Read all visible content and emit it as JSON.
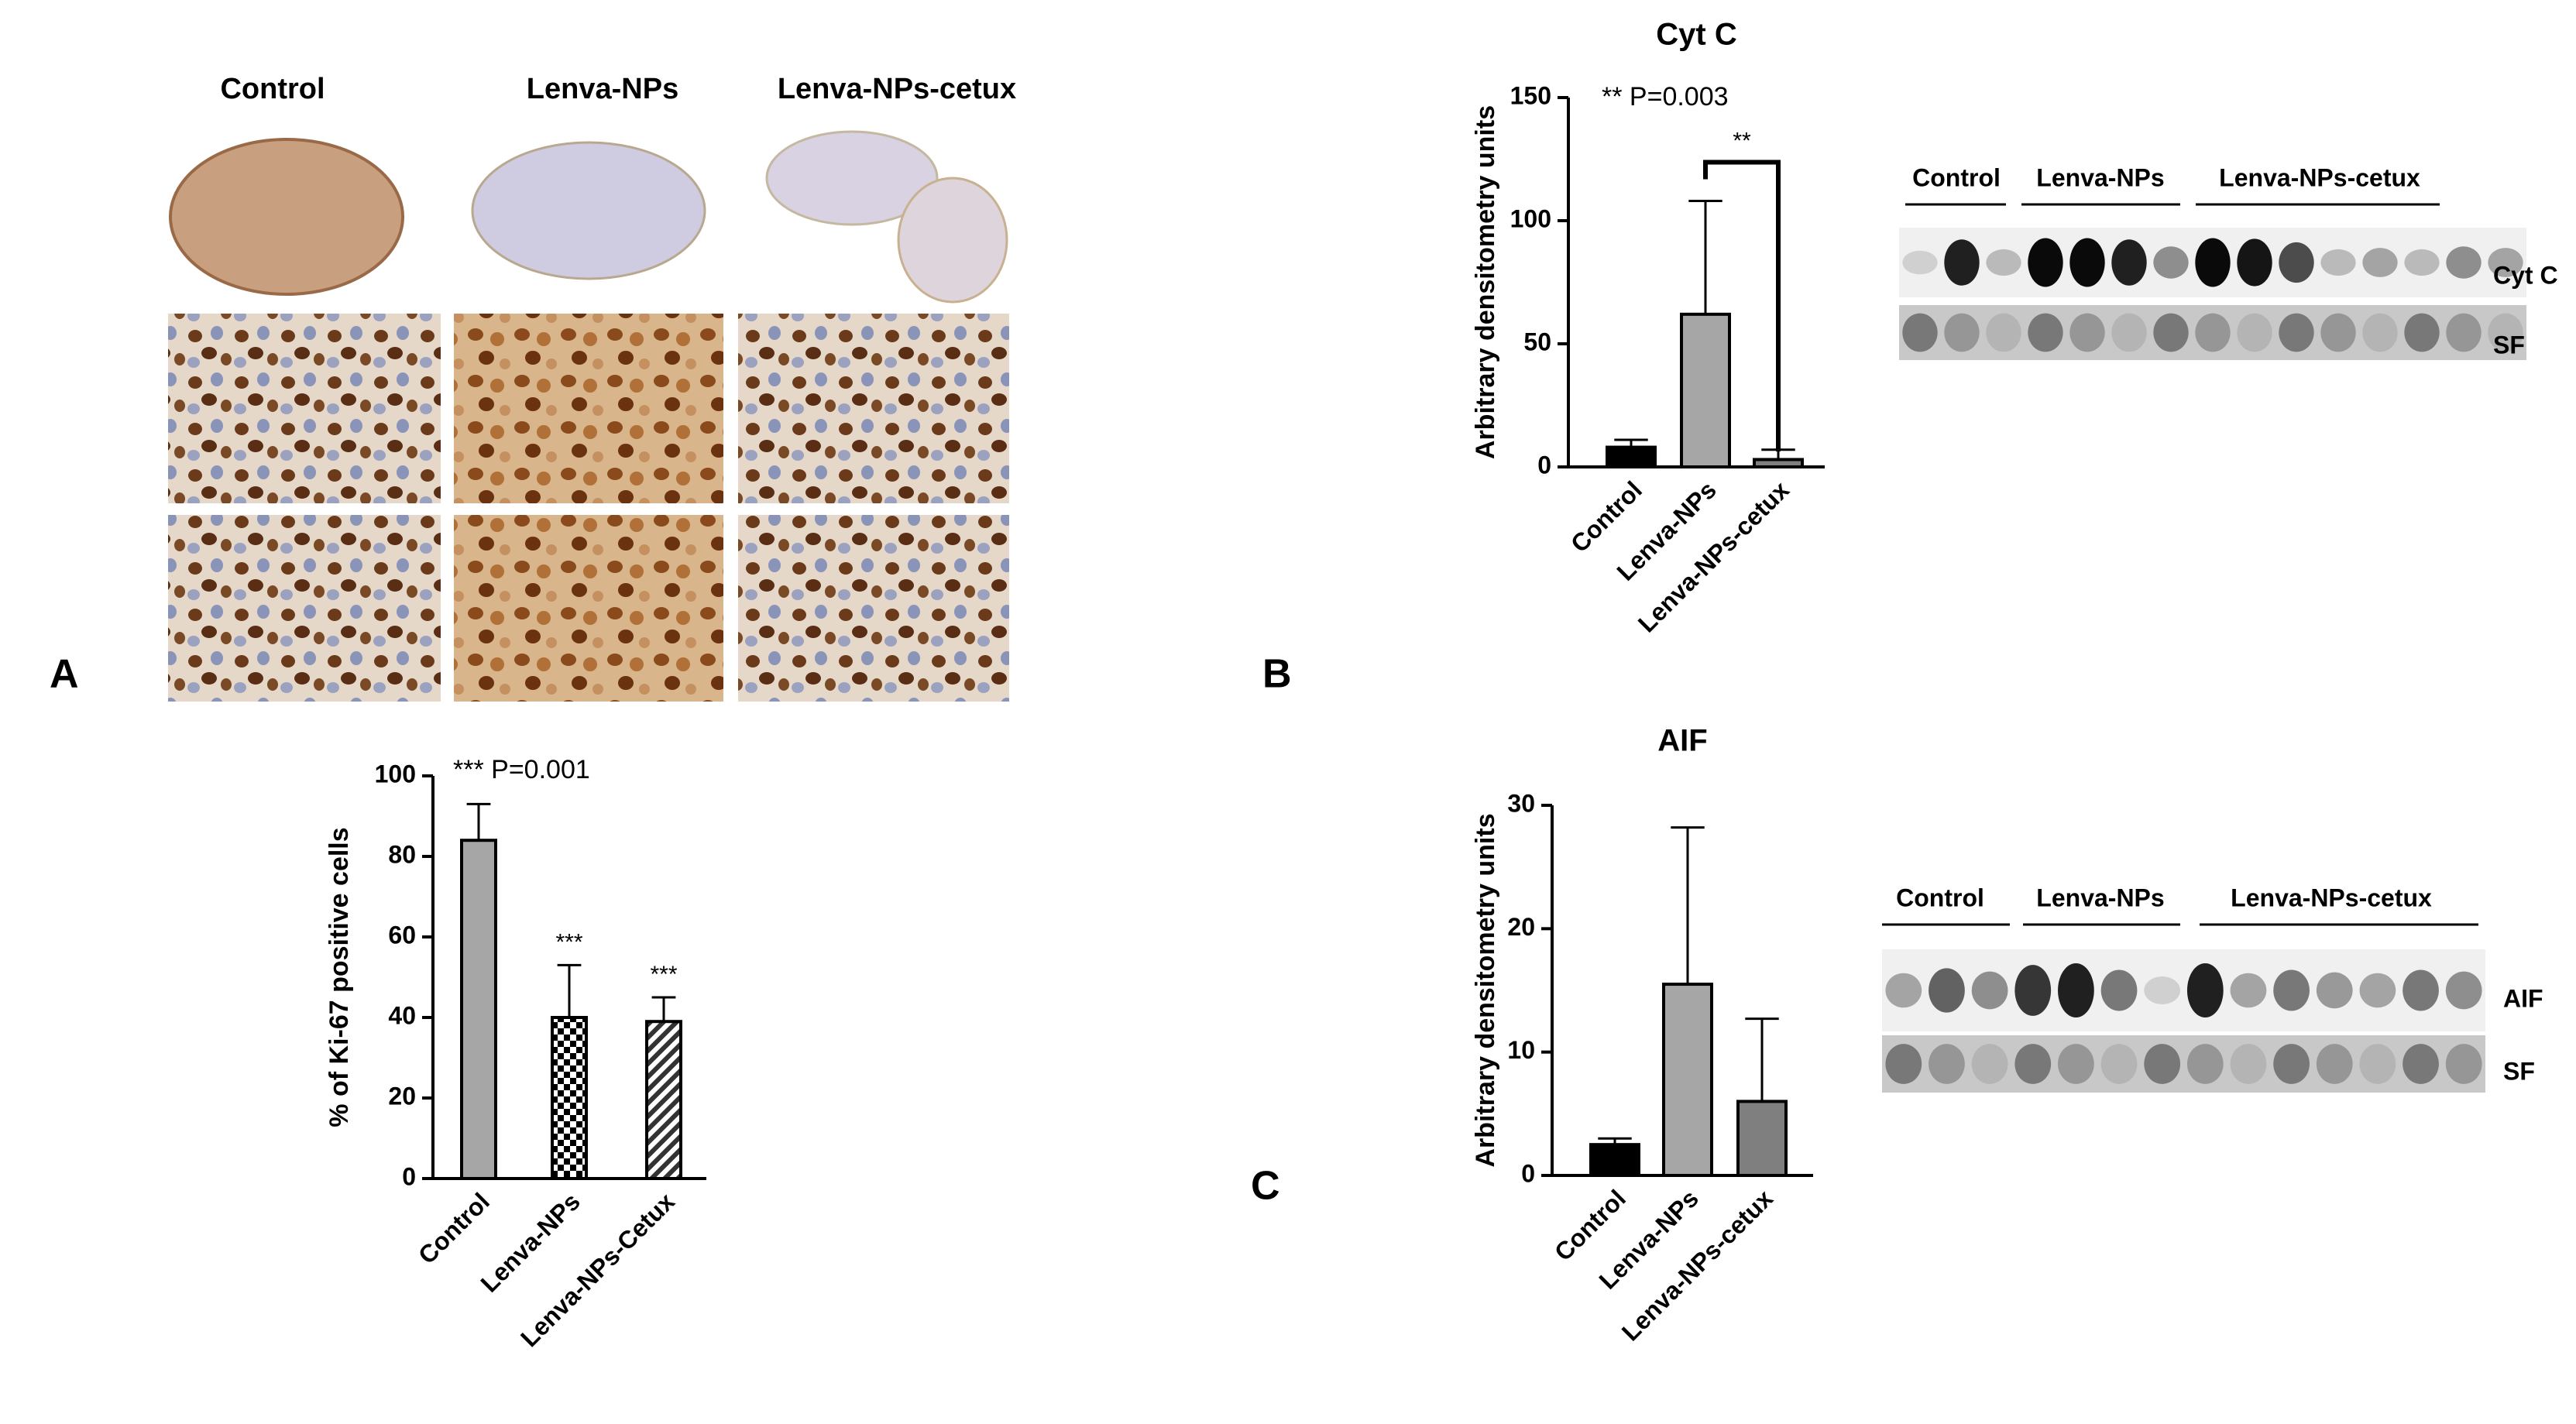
{
  "panel_labels": [
    "A",
    "B",
    "C"
  ],
  "histology": {
    "columns": [
      "Control",
      "Lenva-NPs",
      "Lenva-NPs-cetux"
    ]
  },
  "blots": [
    {
      "groups": [
        "Control",
        "Lenva-NPs",
        "Lenva-NPs-cetux"
      ],
      "bands": [
        "Cyt C",
        "SF"
      ]
    },
    {
      "groups": [
        "Control",
        "Lenva-NPs",
        "Lenva-NPs-cetux"
      ],
      "bands": [
        "AIF",
        "SF"
      ]
    }
  ],
  "chart_data": [
    {
      "type": "bar",
      "y_label": "% of Ki-67 positive cells",
      "categories": [
        "Control",
        "Lenva-NPs",
        "Lenva-NPs-Cetux"
      ],
      "values": [
        84,
        40,
        39
      ],
      "errors": [
        9,
        13,
        6
      ],
      "colors": [
        "#a6a6a6",
        "#000000",
        "#000000"
      ],
      "patterns": [
        "solid",
        "checker",
        "hatch"
      ],
      "annotations": [
        "*** P=0.001",
        "***",
        "***"
      ],
      "ylim": [
        0,
        100
      ],
      "yticks": [
        0,
        20,
        40,
        60,
        80,
        100
      ]
    },
    {
      "type": "bar",
      "title": "Cyt C",
      "y_label": "Arbitrary densitometry units",
      "categories": [
        "Control",
        "Lenva-NPs",
        "Lenva-NPs-cetux"
      ],
      "values": [
        8,
        62,
        3
      ],
      "errors": [
        3,
        46,
        4
      ],
      "colors": [
        "#000000",
        "#a6a6a6",
        "#7f7f7f"
      ],
      "patterns": [
        "solid",
        "solid",
        "solid"
      ],
      "annotations": [
        "** P=0.003",
        "**"
      ],
      "ylim": [
        0,
        150
      ],
      "yticks": [
        0,
        50,
        100,
        150
      ]
    },
    {
      "type": "bar",
      "title": "AIF",
      "y_label": "Arbitrary densitometry units",
      "categories": [
        "Control",
        "Lenva-NPs",
        "Lenva-NPs-cetux"
      ],
      "values": [
        2.5,
        15.5,
        6
      ],
      "errors": [
        0.5,
        12.7,
        6.7
      ],
      "colors": [
        "#000000",
        "#a6a6a6",
        "#7f7f7f"
      ],
      "patterns": [
        "solid",
        "solid",
        "solid"
      ],
      "ylim": [
        0,
        30
      ],
      "yticks": [
        0,
        10,
        20,
        30
      ]
    }
  ]
}
